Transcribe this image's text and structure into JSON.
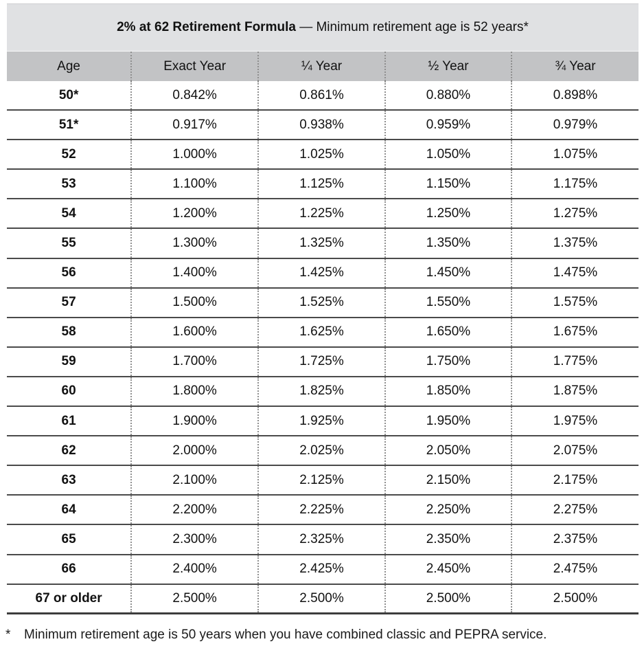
{
  "table": {
    "title": {
      "bold": "2% at 62 Retirement Formula",
      "rest": " — Minimum retirement age is 52 years*"
    },
    "columns": [
      "Age",
      "Exact Year",
      "¼ Year",
      "½ Year",
      "¾ Year"
    ],
    "rows": [
      {
        "age": "50*",
        "values": [
          "0.842%",
          "0.861%",
          "0.880%",
          "0.898%"
        ]
      },
      {
        "age": "51*",
        "values": [
          "0.917%",
          "0.938%",
          "0.959%",
          "0.979%"
        ]
      },
      {
        "age": "52",
        "values": [
          "1.000%",
          "1.025%",
          "1.050%",
          "1.075%"
        ]
      },
      {
        "age": "53",
        "values": [
          "1.100%",
          "1.125%",
          "1.150%",
          "1.175%"
        ]
      },
      {
        "age": "54",
        "values": [
          "1.200%",
          "1.225%",
          "1.250%",
          "1.275%"
        ]
      },
      {
        "age": "55",
        "values": [
          "1.300%",
          "1.325%",
          "1.350%",
          "1.375%"
        ]
      },
      {
        "age": "56",
        "values": [
          "1.400%",
          "1.425%",
          "1.450%",
          "1.475%"
        ]
      },
      {
        "age": "57",
        "values": [
          "1.500%",
          "1.525%",
          "1.550%",
          "1.575%"
        ]
      },
      {
        "age": "58",
        "values": [
          "1.600%",
          "1.625%",
          "1.650%",
          "1.675%"
        ]
      },
      {
        "age": "59",
        "values": [
          "1.700%",
          "1.725%",
          "1.750%",
          "1.775%"
        ]
      },
      {
        "age": "60",
        "values": [
          "1.800%",
          "1.825%",
          "1.850%",
          "1.875%"
        ]
      },
      {
        "age": "61",
        "values": [
          "1.900%",
          "1.925%",
          "1.950%",
          "1.975%"
        ]
      },
      {
        "age": "62",
        "values": [
          "2.000%",
          "2.025%",
          "2.050%",
          "2.075%"
        ]
      },
      {
        "age": "63",
        "values": [
          "2.100%",
          "2.125%",
          "2.150%",
          "2.175%"
        ]
      },
      {
        "age": "64",
        "values": [
          "2.200%",
          "2.225%",
          "2.250%",
          "2.275%"
        ]
      },
      {
        "age": "65",
        "values": [
          "2.300%",
          "2.325%",
          "2.350%",
          "2.375%"
        ]
      },
      {
        "age": "66",
        "values": [
          "2.400%",
          "2.425%",
          "2.450%",
          "2.475%"
        ]
      },
      {
        "age": "67 or older",
        "values": [
          "2.500%",
          "2.500%",
          "2.500%",
          "2.500%"
        ]
      }
    ]
  },
  "footnote": {
    "marker": "*",
    "text": "Minimum retirement age is 50 years when you have combined classic and PEPRA service."
  },
  "colors": {
    "title_bg": "#e0e1e3",
    "header_bg": "#c2c3c5",
    "row_line": "#4a4a4a",
    "dotted_line": "#8f8f8f"
  }
}
